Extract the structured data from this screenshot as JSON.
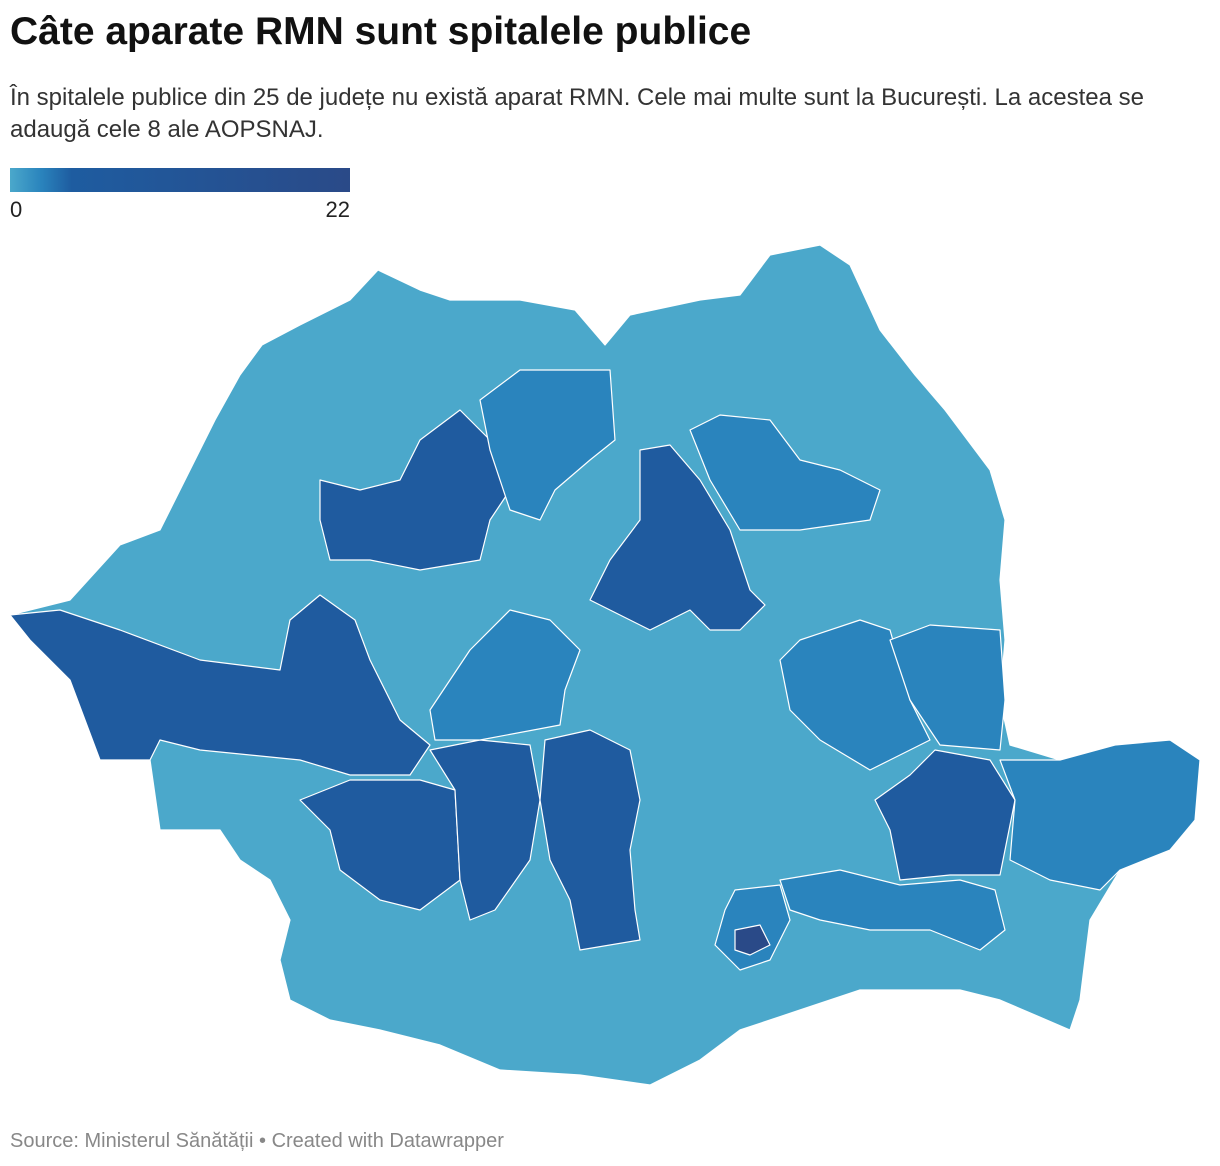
{
  "chart_data": {
    "type": "choropleth",
    "title": "Câte aparate RMN sunt spitalele publice",
    "subtitle": "În spitalele publice din 25 de județe nu există aparat RMN. Cele mai multe sunt la București. La acestea se adaugă cele 8 ale AOPSNAJ.",
    "legend": {
      "min": 0,
      "max": 22
    },
    "color_stops": [
      {
        "value": 0,
        "color": "#4ba8cb"
      },
      {
        "value": 2,
        "color": "#2a84bd"
      },
      {
        "value": 4,
        "color": "#1e5ca0"
      },
      {
        "value": 22,
        "color": "#2a4a88"
      }
    ],
    "values": [
      0,
      5,
      5,
      5,
      5,
      5,
      5,
      5,
      2,
      2,
      2,
      2,
      2,
      2,
      2,
      2,
      22
    ],
    "source": "Source: Ministerul Sănătății • Created with Datawrapper"
  }
}
